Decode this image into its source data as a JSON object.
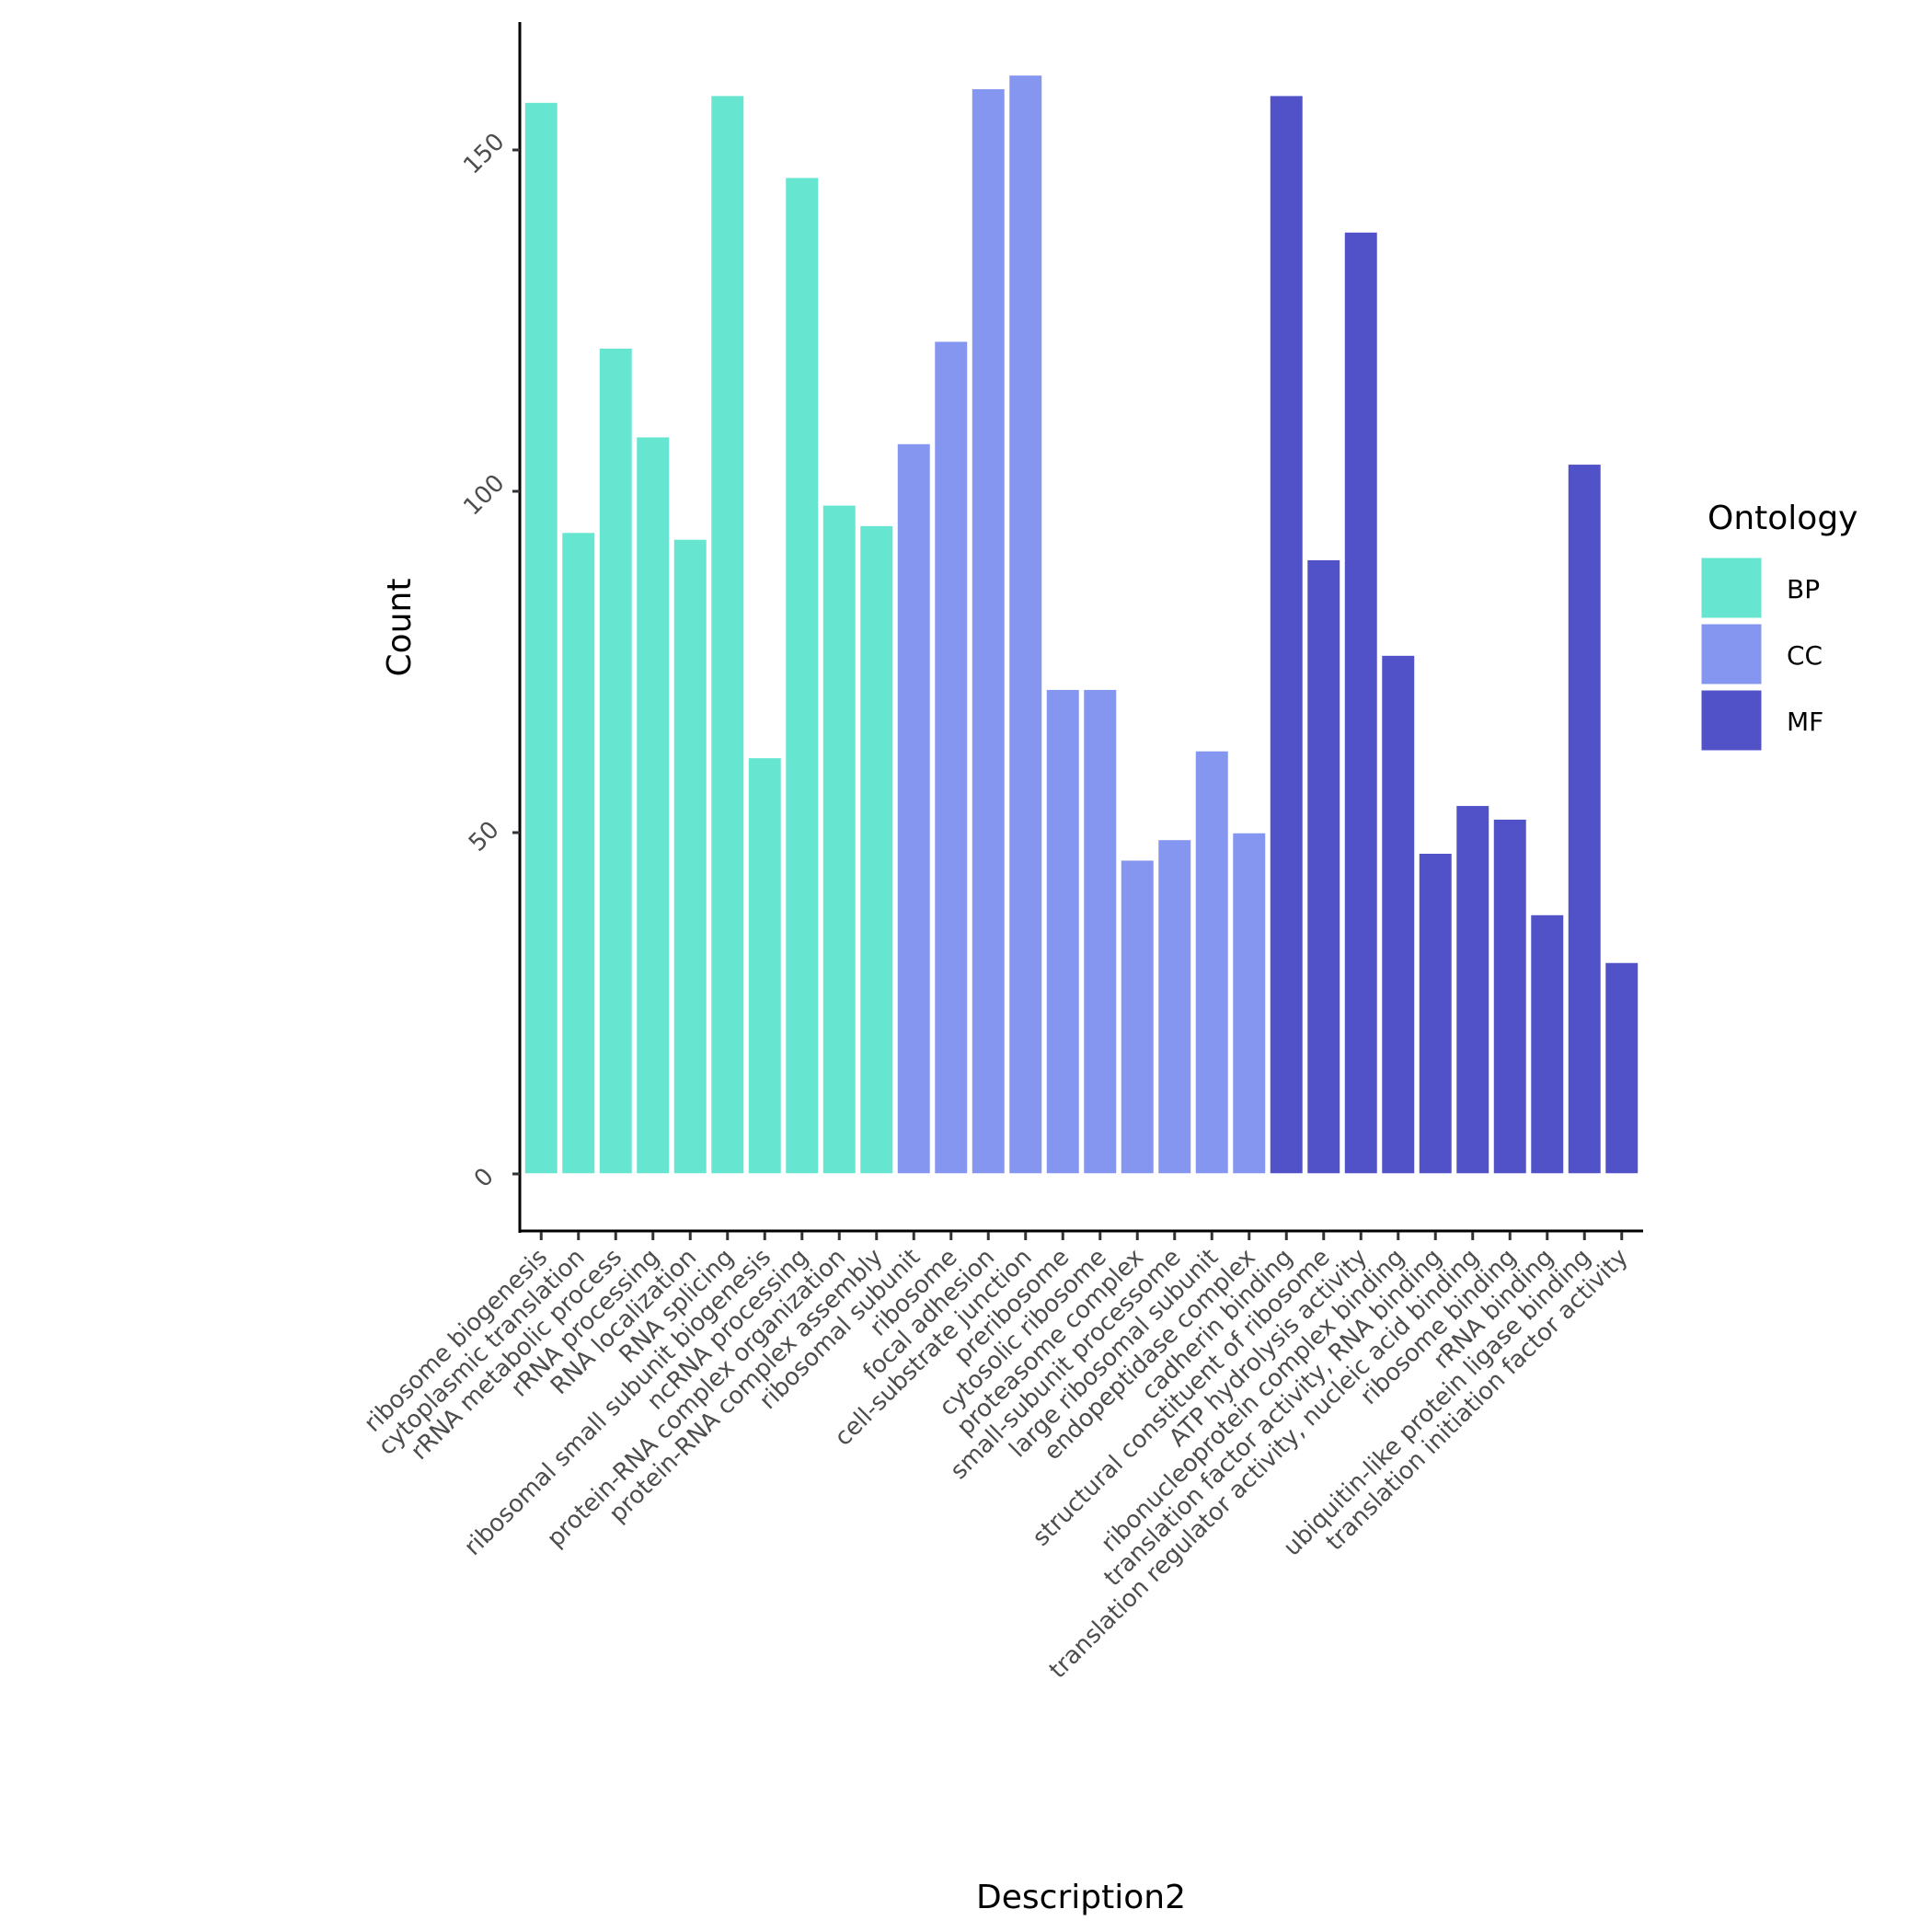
{
  "chart_data": {
    "type": "bar",
    "title": "",
    "xlabel": "Description2",
    "ylabel": "Count",
    "ylim": [
      -7.5,
      168
    ],
    "yticks": [
      0,
      50,
      100,
      150
    ],
    "ytick_labels": [
      "0",
      "50",
      "100",
      "150"
    ],
    "grid": false,
    "legend": {
      "title": "Ontology",
      "placement": "right",
      "entries": [
        {
          "name": "BP",
          "color": "#66E6D0"
        },
        {
          "name": "CC",
          "color": "#8596F0"
        },
        {
          "name": "MF",
          "color": "#5152C8"
        }
      ]
    },
    "categories": [
      "ribosome biogenesis",
      "cytoplasmic translation",
      "rRNA metabolic process",
      "rRNA processing",
      "RNA localization",
      "RNA splicing",
      "ribosomal small subunit biogenesis",
      "ncRNA processing",
      "protein-RNA complex organization",
      "protein-RNA complex assembly",
      "ribosomal subunit",
      "ribosome",
      "focal adhesion",
      "cell-substrate junction",
      "preribosome",
      "cytosolic ribosome",
      "proteasome complex",
      "small-subunit processome",
      "large ribosomal subunit",
      "endopeptidase complex",
      "cadherin binding",
      "structural constituent of ribosome",
      "ATP hydrolysis activity",
      "ribonucleoprotein complex binding",
      "translation factor activity, RNA binding",
      "translation regulator activity, nucleic acid binding",
      "ribosome binding",
      "rRNA binding",
      "ubiquitin-like protein ligase binding",
      "translation initiation factor activity"
    ],
    "groups": [
      "BP",
      "BP",
      "BP",
      "BP",
      "BP",
      "BP",
      "BP",
      "BP",
      "BP",
      "BP",
      "CC",
      "CC",
      "CC",
      "CC",
      "CC",
      "CC",
      "CC",
      "CC",
      "CC",
      "CC",
      "MF",
      "MF",
      "MF",
      "MF",
      "MF",
      "MF",
      "MF",
      "MF",
      "MF",
      "MF"
    ],
    "values": [
      157,
      94,
      121,
      108,
      93,
      158,
      61,
      146,
      98,
      95,
      107,
      122,
      159,
      161,
      71,
      71,
      46,
      49,
      62,
      50,
      158,
      90,
      138,
      76,
      47,
      54,
      52,
      38,
      104,
      31
    ]
  }
}
